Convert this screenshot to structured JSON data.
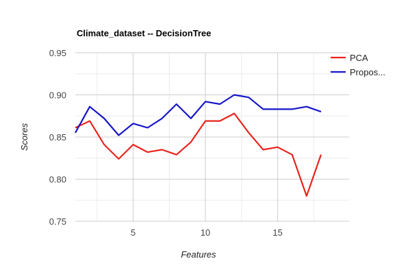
{
  "chart_data": {
    "type": "line",
    "title": "Climate_dataset -- DecisionTree",
    "xlabel": "Features",
    "ylabel": "Scores",
    "xlim": [
      1,
      18
    ],
    "ylim": [
      0.75,
      0.95
    ],
    "x_ticks": [
      "5",
      "10",
      "15"
    ],
    "y_ticks": [
      "0.95",
      "0.90",
      "0.85",
      "0.80",
      "0.75"
    ],
    "grid": true,
    "legend_position": "right",
    "x": [
      1,
      2,
      3,
      4,
      5,
      6,
      7,
      8,
      9,
      10,
      11,
      12,
      13,
      14,
      15,
      16,
      17,
      18
    ],
    "series": [
      {
        "name": "PCA",
        "color": "#e8231c",
        "values": [
          0.861,
          0.869,
          0.841,
          0.824,
          0.841,
          0.832,
          0.835,
          0.829,
          0.844,
          0.869,
          0.869,
          0.878,
          0.855,
          0.835,
          0.838,
          0.829,
          0.78,
          0.829
        ]
      },
      {
        "name": "Propos...",
        "color": "#1515c8",
        "values": [
          0.855,
          0.886,
          0.872,
          0.852,
          0.866,
          0.861,
          0.872,
          0.889,
          0.872,
          0.892,
          0.889,
          0.9,
          0.897,
          0.883,
          0.883,
          0.883,
          0.886,
          0.88
        ]
      }
    ]
  }
}
